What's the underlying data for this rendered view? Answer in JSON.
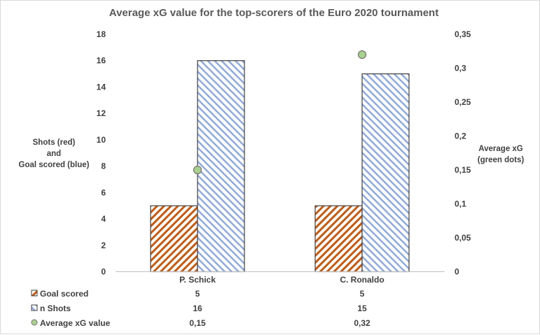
{
  "chart_data": {
    "type": "bar",
    "title": "Average xG value for the top-scorers of the Euro 2020 tournament",
    "categories": [
      "P. Schick",
      "C. Ronaldo"
    ],
    "series": [
      {
        "name": "Goal scored",
        "values": [
          5,
          5
        ],
        "axis": "left",
        "color": "#c55a11",
        "pattern": "diagonal-hatch-back"
      },
      {
        "name": "n Shots",
        "values": [
          16,
          15
        ],
        "axis": "left",
        "color": "#8faadc",
        "pattern": "diagonal-hatch-forward"
      },
      {
        "name": "Average xG value",
        "values": [
          0.15,
          0.32
        ],
        "axis": "right",
        "type": "scatter",
        "color": "#a9d18e"
      }
    ],
    "ylabel_left": [
      "Shots (red)",
      "and",
      "Goal scored (blue)"
    ],
    "ylabel_right": [
      "Average xG",
      "(green dots)"
    ],
    "ylim_left": [
      0,
      18
    ],
    "ylim_right": [
      0,
      0.35
    ],
    "yticks_left": [
      "0",
      "2",
      "4",
      "6",
      "8",
      "10",
      "12",
      "14",
      "16",
      "18"
    ],
    "yticks_right": [
      "0",
      "0,05",
      "0,1",
      "0,15",
      "0,2",
      "0,25",
      "0,3",
      "0,35"
    ],
    "table_values": [
      [
        "5",
        "5"
      ],
      [
        "16",
        "15"
      ],
      [
        "0,15",
        "0,32"
      ]
    ],
    "grid": false,
    "legend": "data table below chart"
  }
}
